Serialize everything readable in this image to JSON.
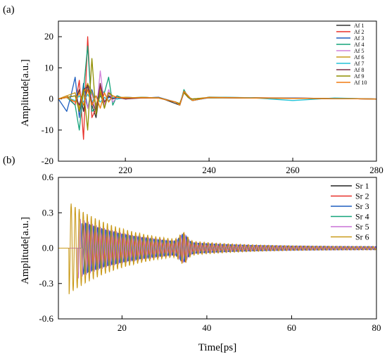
{
  "chart_data": [
    {
      "type": "line",
      "panel_label": "(a)",
      "xlabel": "",
      "ylabel": "Amplitude[a.u.]",
      "xlim": [
        204,
        280
      ],
      "ylim": [
        -20,
        25
      ],
      "xticks": [
        220,
        240,
        260,
        280
      ],
      "yticks": [
        -20,
        -10,
        0,
        10,
        20
      ],
      "legend_position": "top-right",
      "series": [
        {
          "name": "Af 1",
          "color": "#333333",
          "x": [
            204,
            206,
            208,
            209,
            210,
            211,
            212,
            213,
            214,
            215,
            216,
            217,
            218,
            220,
            224,
            228,
            232,
            233,
            234,
            235,
            236,
            240,
            250,
            260,
            270,
            280
          ],
          "y": [
            0,
            0.5,
            -1,
            3,
            -4,
            5,
            -2,
            -6,
            3,
            -2,
            1,
            0.5,
            0,
            0.5,
            0.3,
            0.5,
            -1.5,
            -2,
            2.5,
            1,
            -0.5,
            0.5,
            0.3,
            0.2,
            0.1,
            0
          ]
        },
        {
          "name": "Af 2",
          "color": "#e8312a",
          "x": [
            204,
            206,
            208,
            209,
            210,
            211,
            212,
            213,
            214,
            215,
            216,
            217,
            218,
            220,
            224,
            228,
            232,
            233,
            234,
            235,
            236,
            240,
            250,
            260,
            270,
            280
          ],
          "y": [
            0,
            1,
            -2,
            6,
            -13,
            20,
            -6,
            -3,
            4,
            -2,
            2,
            0,
            1,
            0,
            0.5,
            0.3,
            -1,
            -2,
            2.5,
            0.5,
            -0.5,
            0.5,
            0.4,
            0.3,
            0.1,
            0
          ]
        },
        {
          "name": "Af 3",
          "color": "#1f5fbf",
          "x": [
            204,
            206,
            207,
            208,
            209,
            210,
            211,
            212,
            213,
            214,
            215,
            216,
            218,
            220,
            224,
            228,
            232,
            233,
            234,
            235,
            236,
            240,
            250,
            260,
            270,
            280
          ],
          "y": [
            0,
            -4,
            1,
            7,
            -6,
            5,
            -3,
            3,
            -2,
            1,
            -1,
            0.5,
            0,
            0.5,
            0.3,
            0.5,
            -1,
            -2,
            2,
            1,
            -0.5,
            0.4,
            0.3,
            0.3,
            0.1,
            0
          ]
        },
        {
          "name": "Af 4",
          "color": "#13a37a",
          "x": [
            204,
            206,
            208,
            209,
            210,
            211,
            212,
            213,
            214,
            215,
            216,
            217,
            218,
            220,
            224,
            228,
            232,
            233,
            234,
            235,
            236,
            240,
            250,
            260,
            270,
            280
          ],
          "y": [
            0,
            0.5,
            -2,
            -10,
            3,
            17,
            -4,
            -3,
            3,
            2,
            7,
            -2,
            1,
            0,
            0.5,
            0.3,
            -1,
            -2,
            3,
            0.5,
            -0.5,
            0.6,
            0.4,
            0.2,
            0.2,
            0
          ]
        },
        {
          "name": "Af 5",
          "color": "#d180d9",
          "x": [
            204,
            206,
            208,
            209,
            210,
            211,
            212,
            213,
            214,
            215,
            216,
            217,
            218,
            220,
            224,
            228,
            232,
            233,
            234,
            235,
            236,
            240,
            250,
            260,
            270,
            280
          ],
          "y": [
            0,
            0.5,
            1,
            -2,
            2,
            -3,
            2,
            -5,
            9,
            -2,
            3,
            -1,
            0.5,
            0,
            0.5,
            0.3,
            -1,
            -1.5,
            2,
            0.5,
            0,
            0.4,
            0.3,
            0.2,
            0.1,
            0
          ]
        },
        {
          "name": "Af 6",
          "color": "#c99a1a",
          "x": [
            204,
            206,
            208,
            209,
            210,
            211,
            212,
            213,
            214,
            215,
            216,
            217,
            218,
            220,
            224,
            228,
            232,
            233,
            234,
            235,
            236,
            240,
            250,
            260,
            270,
            280
          ],
          "y": [
            0,
            1,
            2,
            -3,
            2,
            5,
            2,
            -2,
            3,
            -3,
            2,
            1,
            0.5,
            0.5,
            0.3,
            0.4,
            -1,
            -1.5,
            2,
            0.5,
            0,
            0.5,
            0.3,
            0.2,
            0.1,
            0
          ]
        },
        {
          "name": "Af 7",
          "color": "#22c2d6",
          "x": [
            204,
            206,
            208,
            209,
            210,
            211,
            212,
            213,
            214,
            215,
            216,
            217,
            218,
            220,
            224,
            228,
            232,
            233,
            234,
            235,
            236,
            240,
            250,
            260,
            270,
            280
          ],
          "y": [
            0,
            0.5,
            -0.5,
            1,
            -1,
            1.5,
            -1,
            1,
            -1,
            0.5,
            -0.5,
            0.5,
            0,
            0.3,
            0.5,
            0.3,
            -1,
            -1.5,
            2.5,
            1,
            -0.5,
            0.5,
            0.4,
            -0.5,
            0.3,
            0
          ]
        },
        {
          "name": "Af 8",
          "color": "#7b2f47",
          "x": [
            204,
            206,
            208,
            209,
            210,
            211,
            212,
            213,
            214,
            215,
            216,
            217,
            218,
            220,
            224,
            228,
            232,
            233,
            234,
            235,
            236,
            240,
            250,
            260,
            270,
            280
          ],
          "y": [
            0,
            0.5,
            1,
            -2,
            3,
            4,
            -1,
            -4,
            5,
            -1,
            1,
            0,
            0.5,
            0,
            0.3,
            0.3,
            -1,
            -1.5,
            2,
            0.5,
            0,
            0.4,
            0.3,
            0.2,
            0.1,
            0
          ]
        },
        {
          "name": "Af 9",
          "color": "#8f8f00",
          "x": [
            204,
            206,
            208,
            209,
            210,
            211,
            212,
            213,
            214,
            215,
            216,
            217,
            218,
            220,
            224,
            228,
            232,
            233,
            234,
            235,
            236,
            240,
            250,
            260,
            270,
            280
          ],
          "y": [
            0,
            0.5,
            1,
            -4,
            3,
            -10,
            13,
            -5,
            2,
            -3,
            2,
            1,
            0.5,
            0.3,
            0.5,
            0.3,
            -1,
            -1.5,
            2,
            0.5,
            0,
            0.4,
            0.3,
            0.2,
            0.1,
            0
          ]
        },
        {
          "name": "Af 10",
          "color": "#f07a10",
          "x": [
            204,
            206,
            208,
            209,
            210,
            211,
            212,
            213,
            214,
            215,
            216,
            217,
            218,
            220,
            224,
            228,
            232,
            233,
            234,
            235,
            236,
            240,
            250,
            260,
            270,
            280
          ],
          "y": [
            0,
            0.5,
            -1,
            2,
            -2,
            3,
            -2,
            1,
            -3,
            2,
            -1,
            1,
            0.5,
            0.3,
            0.4,
            0.3,
            -1,
            -2,
            2.5,
            1,
            -0.5,
            0.5,
            0.3,
            0.2,
            0.1,
            0
          ]
        }
      ]
    },
    {
      "type": "line",
      "panel_label": "(b)",
      "xlabel": "Time[ps]",
      "ylabel": "Amplitude[a.u.]",
      "xlim": [
        5,
        80
      ],
      "ylim": [
        -0.6,
        0.6
      ],
      "xticks": [
        20,
        40,
        60,
        80
      ],
      "yticks": [
        -0.6,
        -0.3,
        0.0,
        0.3,
        0.6
      ],
      "ytick_labels": [
        "-0.6",
        "-0.3",
        "0.0",
        "0.3",
        "0.6"
      ],
      "legend_position": "top-right",
      "oscillation": {
        "period_ps": 0.95,
        "secondary_burst_center_ps": 34.5,
        "decay_ps": 14
      },
      "series": [
        {
          "name": "Sr 1",
          "color": "#222222",
          "onset_ps": 10.5,
          "peak_amplitude": 0.2
        },
        {
          "name": "Sr 2",
          "color": "#e8312a",
          "onset_ps": 11.5,
          "peak_amplitude": 0.2
        },
        {
          "name": "Sr 3",
          "color": "#1f5fbf",
          "onset_ps": 10.5,
          "peak_amplitude": 0.22
        },
        {
          "name": "Sr 4",
          "color": "#13a37a",
          "onset_ps": 11.0,
          "peak_amplitude": 0.21
        },
        {
          "name": "Sr 5",
          "color": "#c870d6",
          "onset_ps": 9.5,
          "peak_amplitude": 0.25
        },
        {
          "name": "Sr 6",
          "color": "#c99a1a",
          "onset_ps": 7.5,
          "peak_amplitude": 0.38
        }
      ]
    }
  ]
}
